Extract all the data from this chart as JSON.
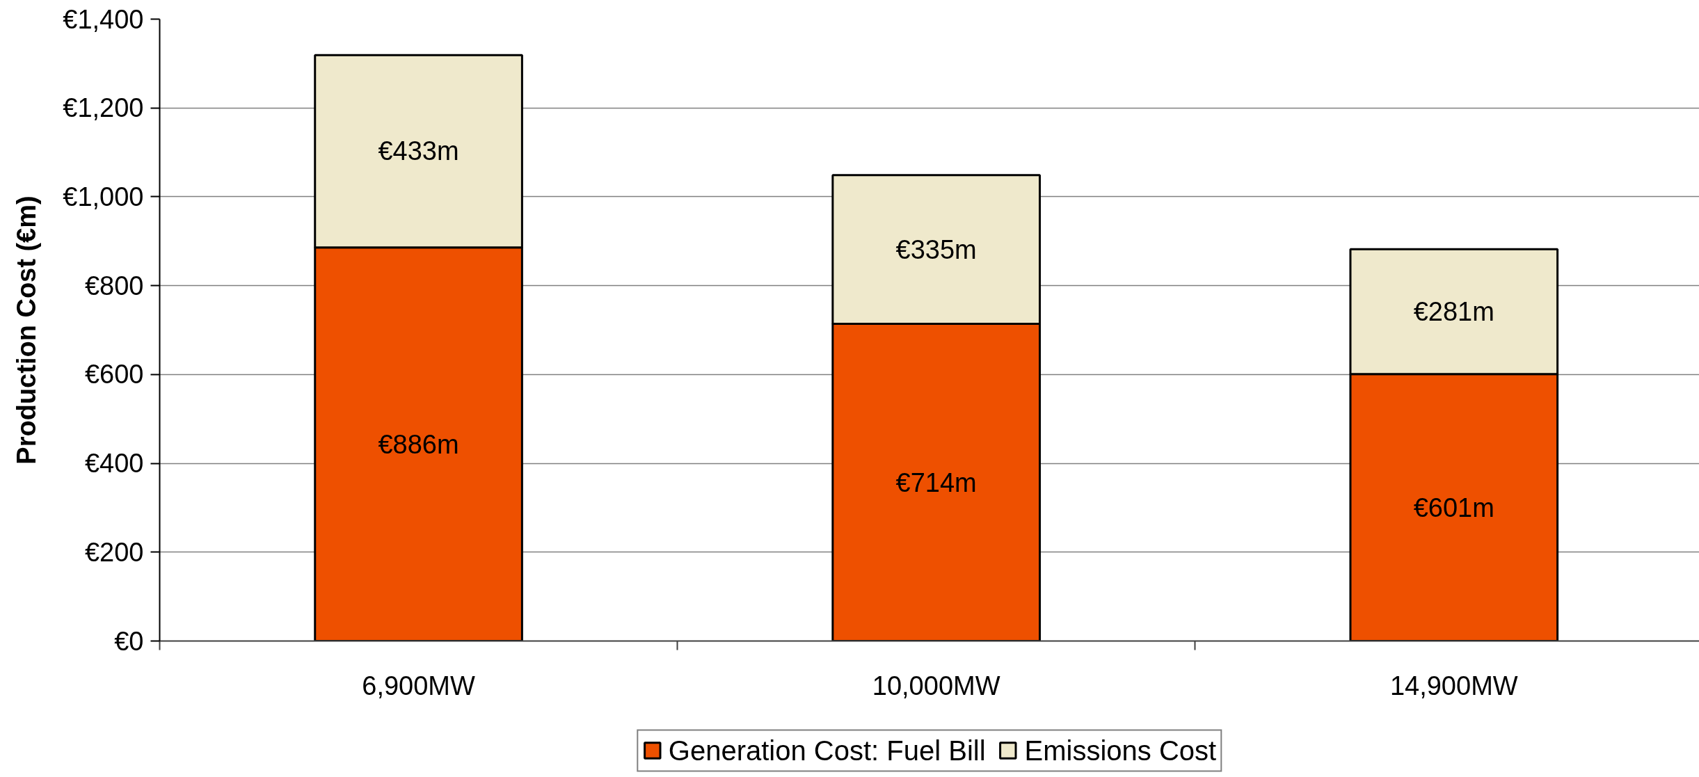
{
  "chart_data": {
    "type": "bar",
    "stacked": true,
    "categories": [
      "6,900MW",
      "10,000MW",
      "14,900MW"
    ],
    "ylabel": "Production Cost (€m)",
    "ylim": [
      0,
      1400
    ],
    "yticks": [
      {
        "value": 0,
        "label": "€0"
      },
      {
        "value": 200,
        "label": "€200"
      },
      {
        "value": 400,
        "label": "€400"
      },
      {
        "value": 600,
        "label": "€600"
      },
      {
        "value": 800,
        "label": "€800"
      },
      {
        "value": 1000,
        "label": "€1,000"
      },
      {
        "value": 1200,
        "label": "€1,200"
      },
      {
        "value": 1400,
        "label": "€1,400"
      }
    ],
    "grid": "y",
    "legend": "bottom",
    "series": [
      {
        "name": "Generation Cost: Fuel Bill",
        "color": "#ee5000",
        "values": [
          886,
          714,
          601
        ],
        "value_labels": [
          "€886m",
          "€714m",
          "€601m"
        ]
      },
      {
        "name": "Emissions Cost",
        "color": "#efe9cc",
        "values": [
          433,
          335,
          281
        ],
        "value_labels": [
          "€433m",
          "€335m",
          "€281m"
        ]
      }
    ]
  }
}
